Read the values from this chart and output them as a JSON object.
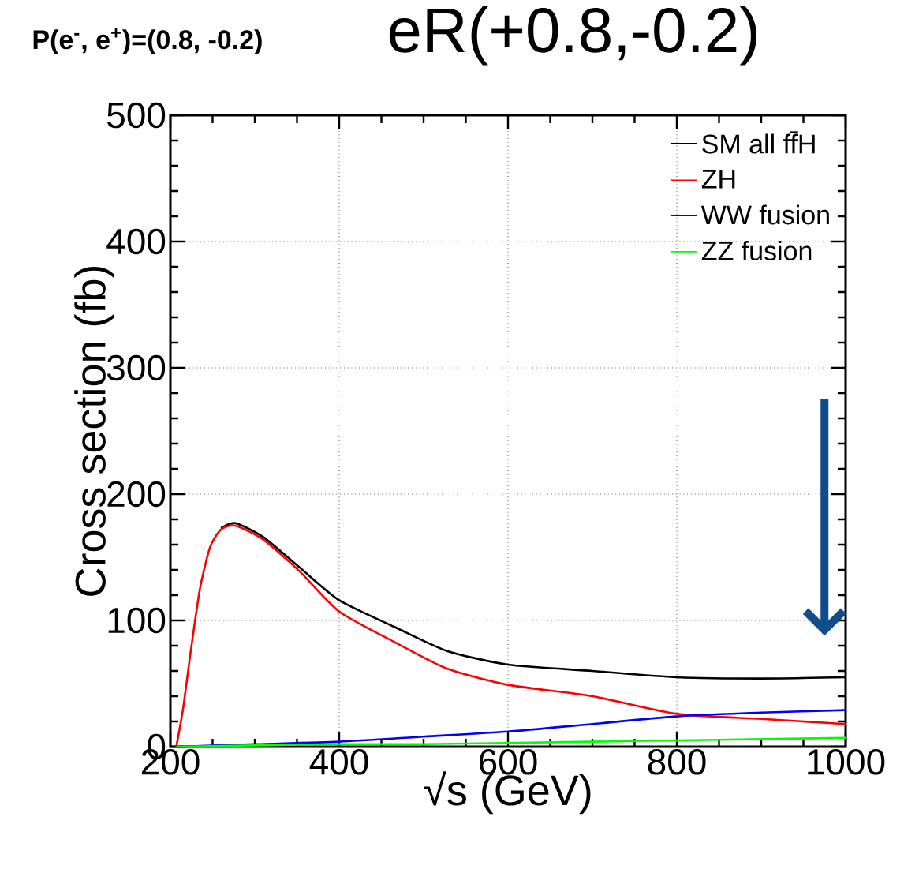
{
  "chart_data": {
    "type": "line",
    "title": "eR(+0.8,-0.2)",
    "subtitle": "P(e$^{-}$, e$^{+}$)=(0.8, -0.2)",
    "xlabel": "√s (GeV)",
    "ylabel": "Cross section (fb)",
    "xlim": [
      200,
      1000
    ],
    "ylim": [
      0,
      500
    ],
    "xticks": [
      200,
      400,
      600,
      800,
      1000
    ],
    "yticks": [
      0,
      100,
      200,
      300,
      400,
      500
    ],
    "grid": true,
    "legend": "top right",
    "line_style": "solid",
    "marker": "none",
    "series": [
      {
        "name": "SM all ff̄H",
        "color": "#000000",
        "x": [
          260,
          277,
          310,
          353,
          400,
          465,
          527,
          600,
          700,
          800,
          900,
          1000
        ],
        "values": [
          173,
          177,
          166,
          142,
          116,
          95,
          76,
          65,
          60,
          55,
          54,
          55
        ]
      },
      {
        "name": "ZH",
        "color": "#ff0000",
        "x": [
          207,
          215,
          224,
          235,
          247,
          260,
          277,
          310,
          353,
          400,
          465,
          527,
          600,
          700,
          800,
          900,
          1000
        ],
        "values": [
          0,
          30,
          75,
          125,
          158,
          172,
          175,
          164,
          139,
          107,
          83,
          62,
          49,
          40,
          26,
          22,
          18
        ]
      },
      {
        "name": "WW fusion",
        "color": "#0000ff",
        "x": [
          207,
          300,
          400,
          500,
          600,
          700,
          800,
          900,
          1000
        ],
        "values": [
          0,
          2,
          4,
          8,
          12,
          18,
          24,
          27,
          29
        ]
      },
      {
        "name": "ZZ fusion",
        "color": "#00ff00",
        "x": [
          207,
          300,
          400,
          500,
          600,
          700,
          800,
          900,
          1000
        ],
        "values": [
          0,
          1,
          2,
          2,
          3,
          4,
          5,
          6,
          7
        ]
      }
    ]
  }
}
